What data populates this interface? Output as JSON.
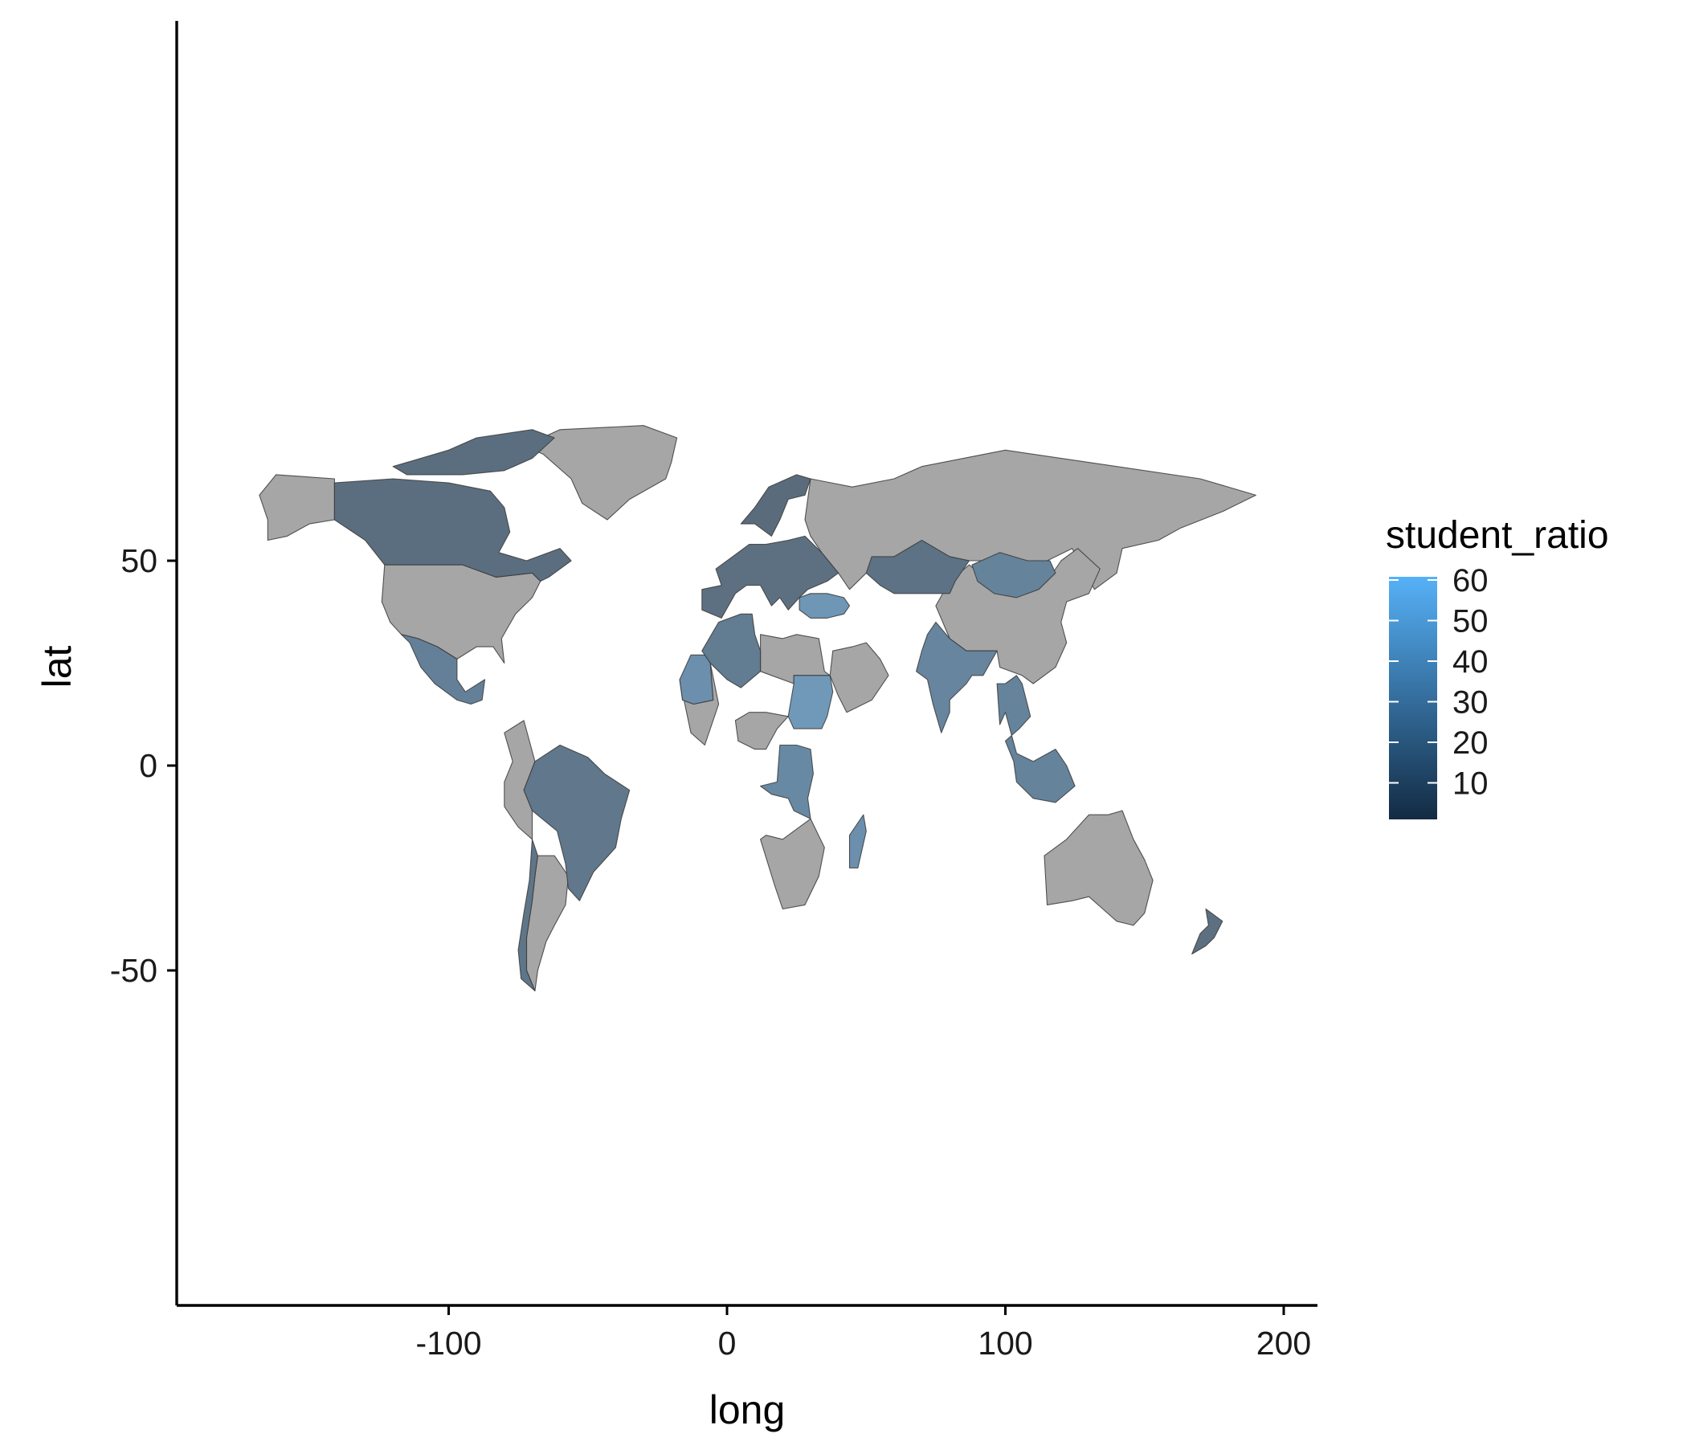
{
  "axes": {
    "x_title": "long",
    "y_title": "lat",
    "x_ticks": [
      -100,
      0,
      100,
      200
    ],
    "y_ticks": [
      50,
      0,
      -50
    ]
  },
  "legend": {
    "title": "student_ratio",
    "labels": [
      "60",
      "50",
      "40",
      "30",
      "20",
      "10"
    ]
  },
  "colors": {
    "na_fill": "#a6a6a6",
    "fill_low": "#132b43",
    "fill_high": "#56b1f7",
    "border": "#3a3a3a",
    "axis": "#000000"
  },
  "chart_data": {
    "type": "choropleth",
    "x_range": [
      -190,
      210
    ],
    "y_range": [
      -65,
      90
    ],
    "fill_variable": "student_ratio",
    "fill_scale": {
      "low_value": 5,
      "high_value": 62,
      "palette": "ggplot2 default blue gradient"
    },
    "regions": [
      {
        "region": "Greenland",
        "value": null
      },
      {
        "region": "Russia",
        "value": null
      },
      {
        "region": "United States",
        "value": null
      },
      {
        "region": "Alaska",
        "value": null
      },
      {
        "region": "China",
        "value": null
      },
      {
        "region": "Australia",
        "value": null
      },
      {
        "region": "Argentina",
        "value": null
      },
      {
        "region": "Canada",
        "value": 14
      },
      {
        "region": "Canadian Arctic Islands",
        "value": 14
      },
      {
        "region": "Mexico",
        "value": 28
      },
      {
        "region": "Brazil",
        "value": 21
      },
      {
        "region": "Chile",
        "value": 20
      },
      {
        "region": "Scandinavia",
        "value": 12
      },
      {
        "region": "Europe",
        "value": 15
      },
      {
        "region": "Turkey",
        "value": 45
      },
      {
        "region": "Kazakhstan",
        "value": 17
      },
      {
        "region": "Mongolia",
        "value": 30
      },
      {
        "region": "India",
        "value": 32
      },
      {
        "region": "Algeria",
        "value": 25
      },
      {
        "region": "Mauritania",
        "value": 40
      },
      {
        "region": "Sudan",
        "value": 47
      },
      {
        "region": "DR Congo",
        "value": 35
      },
      {
        "region": "Madagascar",
        "value": 40
      },
      {
        "region": "Southeast Asia",
        "value": 30
      },
      {
        "region": "New Zealand",
        "value": 15
      }
    ]
  }
}
